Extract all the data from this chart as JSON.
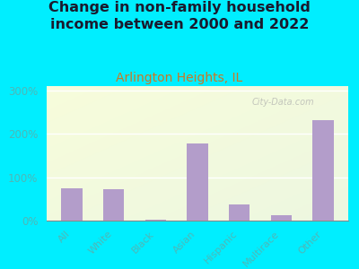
{
  "title": "Change in non-family household\nincome between 2000 and 2022",
  "subtitle": "Arlington Heights, IL",
  "categories": [
    "All",
    "White",
    "Black",
    "Asian",
    "Hispanic",
    "Multirace",
    "Other"
  ],
  "values": [
    75,
    72,
    2,
    178,
    37,
    13,
    232
  ],
  "bar_color": "#b39dca",
  "background_color": "#00eeff",
  "plot_bg_color": "#edf5e1",
  "title_color": "#1a1a2e",
  "subtitle_color": "#cc7722",
  "tick_color": "#4db8b8",
  "ytick_labels": [
    "0%",
    "100%",
    "200%",
    "300%"
  ],
  "ytick_values": [
    0,
    100,
    200,
    300
  ],
  "ylim": [
    0,
    310
  ],
  "watermark": "City-Data.com",
  "title_fontsize": 11.5,
  "subtitle_fontsize": 10
}
